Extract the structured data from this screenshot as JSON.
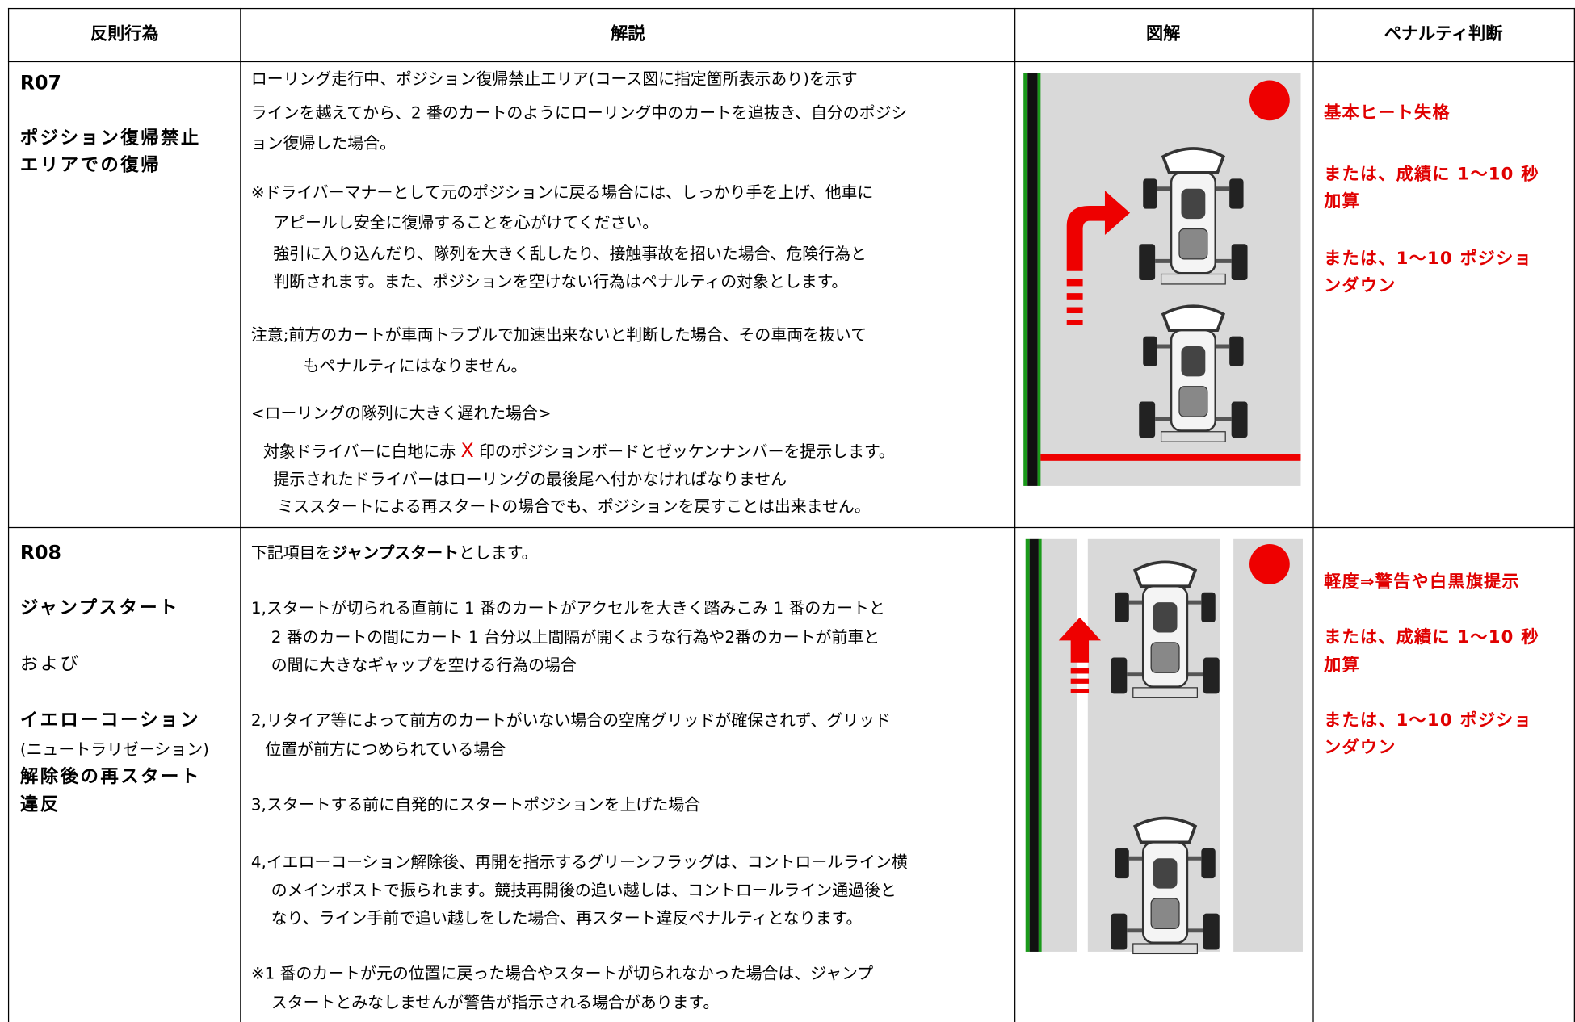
{
  "table": {
    "header": [
      "反則行為",
      "解説",
      "図解",
      "ペナルティ判断"
    ],
    "rows": [
      {
        "code": "R07",
        "name": [
          "ポジション復帰禁止",
          "エリアでの復帰"
        ],
        "explanation": [
          "ローリング走行中、ポジション復帰禁止エリア(コース図に指定箇所表示あり)を示す",
          "ラインを越えてから、2 番のカートのようにローリング中のカートを追抜き、自分のポジシ",
          "ョン復帰した場合。",
          "※ドライバーマナーとして元のポジションに戻る場合には、しっかり手を上げ、他車に",
          "アピールし安全に復帰することを心がけてください。",
          "強引に入り込んだり、隊列を大きく乱したり、接触事故を招いた場合、危険行為と",
          "判断されます。また、ポジションを空けない行為はペナルティの対象とします。",
          "注意;前方のカートが車両トラブルで加速出来ないと判断した場合、その車両を抜いて",
          "もペナルティにはなりません。",
          "<ローリングの隊列に大きく遅れた場合>",
          [
            "対象ドライバーに白地に赤 ",
            "X",
            " 印のポジションボードとゼッケンナンバーを提示します。"
          ],
          "提示されたドライバーはローリングの最後尾へ付かなければなりません",
          "ミススタートによる再スタートの場合でも、ポジションを戻すことは出来ません。"
        ],
        "penalty": [
          "基本ヒート失格",
          "または、成績に 1～10 秒",
          "加算",
          "または、1～10 ポジショ",
          "ンダウン"
        ]
      },
      {
        "code": "R08",
        "name": [
          "ジャンプスタート",
          "および",
          "イエローコーション",
          "(ニュートラリゼーション)",
          "解除後の再スタート",
          "違反"
        ],
        "explanation": [
          [
            "下記項目を",
            "ジャンプスタート",
            "とします。"
          ],
          "1,スタートが切られる直前に 1 番のカートがアクセルを大きく踏みこみ 1 番のカートと",
          "2 番のカートの間にカート 1 台分以上間隔が開くような行為や2番のカートが前車と",
          "の間に大きなギャップを空ける行為の場合",
          "2,リタイア等によって前方のカートがいない場合の空席グリッドが確保されず、グリッド",
          "位置が前方につめられている場合",
          "3,スタートする前に自発的にスタートポジションを上げた場合",
          "4,イエローコーション解除後、再開を指示するグリーンフラッグは、コントロールライン横",
          "のメインポストで振られます。競技再開後の追い越しは、コントロールライン通過後と",
          "なり、ライン手前で追い越しをした場合、再スタート違反ペナルティとなります。",
          "※1 番のカートが元の位置に戻った場合やスタートが切られなかった場合は、ジャンプ",
          "スタートとみなしませんが警告が指示される場合があります。"
        ],
        "penalty": [
          "軽度⇒警告や白黒旗提示",
          "または、成績に 1～10 秒",
          "加算",
          "または、1～10 ポジショ",
          "ンダウン"
        ]
      }
    ]
  }
}
